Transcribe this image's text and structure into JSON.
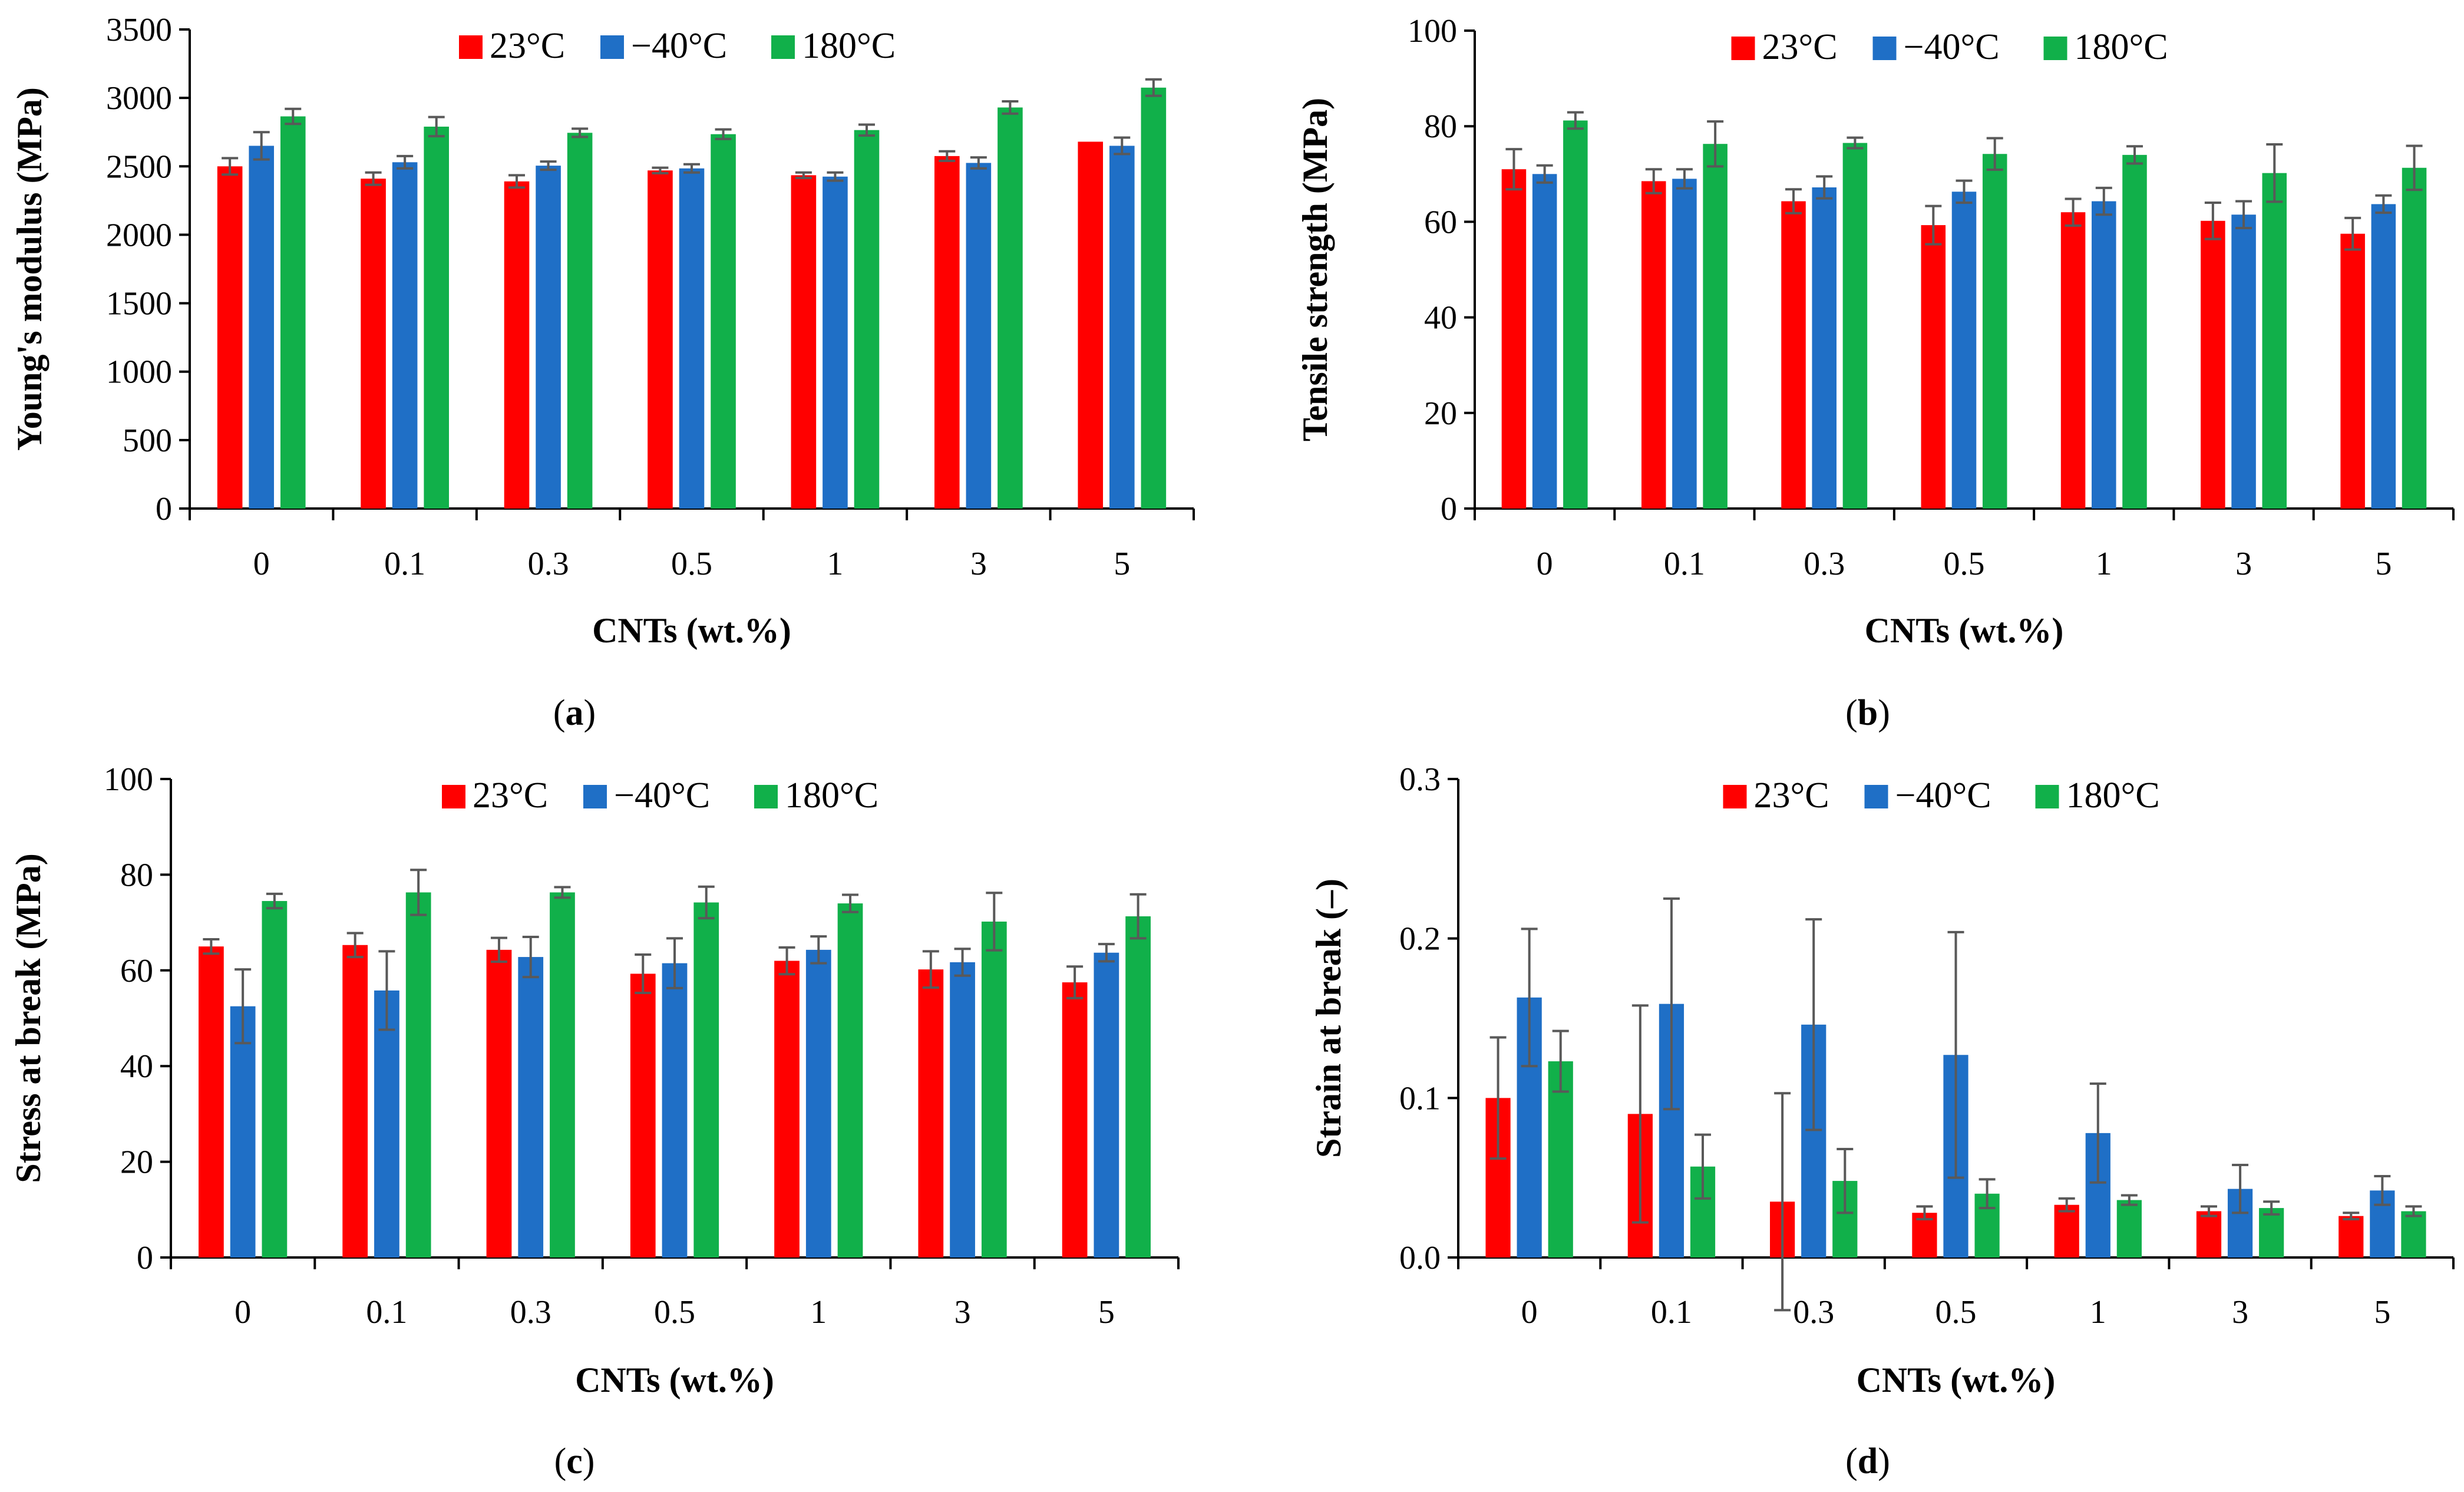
{
  "colors": {
    "t23": "#ff0000",
    "tm40": "#1f6fc6",
    "t180": "#11b04a",
    "error_bar": "#595959",
    "axis": "#000000"
  },
  "chart_data": [
    {
      "id": "a",
      "type": "bar",
      "caption": "(a)",
      "caption_letter": "a",
      "xlabel": "CNTs (wt.%)",
      "ylabel": "Young's modulus (MPa)",
      "ylim": [
        0,
        3500
      ],
      "yticks": [
        "0",
        "500",
        "1000",
        "1500",
        "2000",
        "2500",
        "3000",
        "3500"
      ],
      "ytick_values": [
        0,
        500,
        1000,
        1500,
        2000,
        2500,
        3000,
        3500
      ],
      "categories": [
        "0",
        "0.1",
        "0.3",
        "0.5",
        "1",
        "3",
        "5"
      ],
      "legend_position": "top-center",
      "series": [
        {
          "name": "23°C",
          "color_key": "t23",
          "values": [
            2500,
            2410,
            2390,
            2470,
            2435,
            2575,
            2680
          ],
          "errors": [
            60,
            45,
            45,
            20,
            20,
            35,
            0
          ]
        },
        {
          "name": "−40°C",
          "color_key": "tm40",
          "values": [
            2650,
            2530,
            2505,
            2485,
            2425,
            2525,
            2650
          ],
          "errors": [
            100,
            45,
            30,
            30,
            30,
            40,
            60
          ]
        },
        {
          "name": "180°C",
          "color_key": "t180",
          "values": [
            2865,
            2790,
            2745,
            2735,
            2765,
            2930,
            3075
          ],
          "errors": [
            55,
            70,
            30,
            35,
            40,
            45,
            60
          ]
        }
      ]
    },
    {
      "id": "b",
      "type": "bar",
      "caption": "(b)",
      "caption_letter": "b",
      "xlabel": "CNTs (wt.%)",
      "ylabel": "Tensile strength (MPa)",
      "ylim": [
        0,
        100
      ],
      "yticks": [
        "0",
        "20",
        "40",
        "60",
        "80",
        "100"
      ],
      "ytick_values": [
        0,
        20,
        40,
        60,
        80,
        100
      ],
      "categories": [
        "0",
        "0.1",
        "0.3",
        "0.5",
        "1",
        "3",
        "5"
      ],
      "legend_position": "top-center",
      "series": [
        {
          "name": "23°C",
          "color_key": "t23",
          "values": [
            71,
            68.5,
            64.3,
            59.3,
            62,
            60.2,
            57.5
          ],
          "errors": [
            4.2,
            2.5,
            2.5,
            4,
            2.8,
            3.8,
            3.3
          ]
        },
        {
          "name": "−40°C",
          "color_key": "tm40",
          "values": [
            70,
            69,
            67.2,
            66.3,
            64.3,
            61.5,
            63.7
          ],
          "errors": [
            1.8,
            2,
            2.3,
            2.3,
            2.8,
            2.8,
            1.8
          ]
        },
        {
          "name": "180°C",
          "color_key": "t180",
          "values": [
            81.2,
            76.3,
            76.5,
            74.2,
            74,
            70.2,
            71.3
          ],
          "errors": [
            1.7,
            4.7,
            1.1,
            3.3,
            1.8,
            6,
            4.6
          ]
        }
      ]
    },
    {
      "id": "c",
      "type": "bar",
      "caption": "(c)",
      "caption_letter": "c",
      "xlabel": "CNTs (wt.%)",
      "ylabel": "Stress at break (MPa)",
      "ylim": [
        0,
        100
      ],
      "yticks": [
        "0",
        "20",
        "40",
        "60",
        "80",
        "100"
      ],
      "ytick_values": [
        0,
        20,
        40,
        60,
        80,
        100
      ],
      "categories": [
        "0",
        "0.1",
        "0.3",
        "0.5",
        "1",
        "3",
        "5"
      ],
      "legend_position": "top-center",
      "series": [
        {
          "name": "23°C",
          "color_key": "t23",
          "values": [
            65,
            65.3,
            64.3,
            59.3,
            62,
            60.2,
            57.5
          ],
          "errors": [
            1.5,
            2.5,
            2.5,
            4,
            2.8,
            3.8,
            3.3
          ]
        },
        {
          "name": "−40°C",
          "color_key": "tm40",
          "values": [
            52.5,
            55.8,
            62.8,
            61.5,
            64.3,
            61.7,
            63.7
          ],
          "errors": [
            7.7,
            8.2,
            4.2,
            5.2,
            2.8,
            2.8,
            1.8
          ]
        },
        {
          "name": "180°C",
          "color_key": "t180",
          "values": [
            74.5,
            76.3,
            76.3,
            74.2,
            74,
            70.2,
            71.3
          ],
          "errors": [
            1.5,
            4.7,
            1.1,
            3.3,
            1.8,
            6,
            4.6
          ]
        }
      ]
    },
    {
      "id": "d",
      "type": "bar",
      "caption": "(d)",
      "caption_letter": "d",
      "xlabel": "CNTs (wt.%)",
      "ylabel": "Strain at break (–)",
      "ylim": [
        0,
        0.3
      ],
      "yticks": [
        "0.0",
        "0.1",
        "0.2",
        "0.3"
      ],
      "ytick_values": [
        0,
        0.1,
        0.2,
        0.3
      ],
      "categories": [
        "0",
        "0.1",
        "0.3",
        "0.5",
        "1",
        "3",
        "5"
      ],
      "legend_position": "top-center",
      "series": [
        {
          "name": "23°C",
          "color_key": "t23",
          "values": [
            0.1,
            0.09,
            0.035,
            0.028,
            0.033,
            0.029,
            0.026
          ],
          "errors": [
            0.038,
            0.068,
            0.068,
            0.004,
            0.004,
            0.003,
            0.002
          ]
        },
        {
          "name": "−40°C",
          "color_key": "tm40",
          "values": [
            0.163,
            0.159,
            0.146,
            0.127,
            0.078,
            0.043,
            0.042
          ],
          "errors": [
            0.043,
            0.066,
            0.066,
            0.077,
            0.031,
            0.015,
            0.009
          ]
        },
        {
          "name": "180°C",
          "color_key": "t180",
          "values": [
            0.123,
            0.057,
            0.048,
            0.04,
            0.036,
            0.031,
            0.029
          ],
          "errors": [
            0.019,
            0.02,
            0.02,
            0.009,
            0.003,
            0.004,
            0.003
          ]
        }
      ]
    }
  ]
}
